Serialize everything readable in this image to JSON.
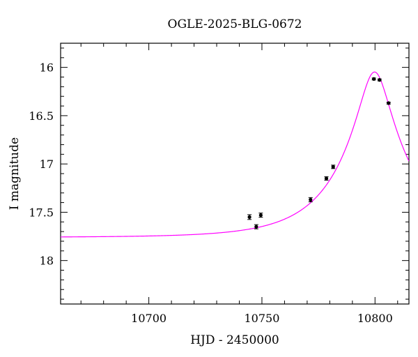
{
  "chart_data": {
    "type": "scatter",
    "title": "OGLE-2025-BLG-0672",
    "xlabel": "HJD - 2450000",
    "ylabel": "I magnitude",
    "xlim": [
      10661,
      10815
    ],
    "ylim": [
      18.45,
      15.75
    ],
    "y_inverted": true,
    "grid": false,
    "x_ticks": [
      10700,
      10750,
      10800
    ],
    "x_tick_labels": [
      "10700",
      "10750",
      "10800"
    ],
    "x_minor_step": 10,
    "y_ticks": [
      16,
      16.5,
      17,
      17.5,
      18
    ],
    "y_tick_labels": [
      "16",
      "16.5",
      "17",
      "17.5",
      "18"
    ],
    "y_minor_step": 0.1,
    "series": [
      {
        "kind": "points",
        "color": "#000000",
        "points": [
          {
            "x": 10744.5,
            "y": 17.55,
            "err": 0.025
          },
          {
            "x": 10747.5,
            "y": 17.65,
            "err": 0.022
          },
          {
            "x": 10749.5,
            "y": 17.53,
            "err": 0.022
          },
          {
            "x": 10771.5,
            "y": 17.37,
            "err": 0.022
          },
          {
            "x": 10778.5,
            "y": 17.15,
            "err": 0.018
          },
          {
            "x": 10781.5,
            "y": 17.03,
            "err": 0.018
          },
          {
            "x": 10799.5,
            "y": 16.12,
            "err": 0.01
          },
          {
            "x": 10802.0,
            "y": 16.13,
            "err": 0.01
          },
          {
            "x": 10806.0,
            "y": 16.37,
            "err": 0.01
          }
        ]
      },
      {
        "kind": "model",
        "color": "#ff00ff",
        "model": {
          "t0": 10799.8,
          "tE": 31,
          "u0": 0.21,
          "baseline_mag": 17.76
        }
      }
    ]
  }
}
